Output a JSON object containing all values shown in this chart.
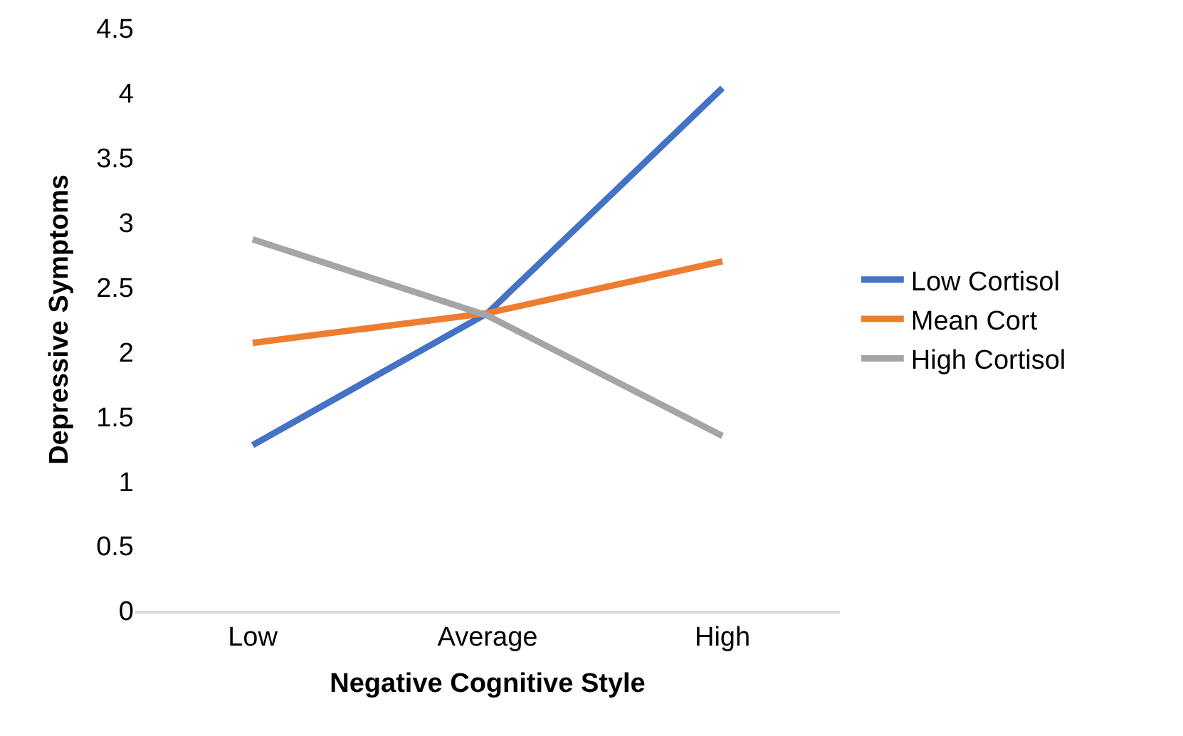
{
  "chart_data": {
    "type": "line",
    "xlabel": "Negative Cognitive Style",
    "ylabel": "Depressive Symptoms",
    "categories": [
      "Low",
      "Average",
      "High"
    ],
    "series": [
      {
        "name": "Low Cortisol",
        "color": "#4472c4",
        "values": [
          1.28,
          2.3,
          4.04
        ]
      },
      {
        "name": "Mean Cort",
        "color": "#ed7d31",
        "values": [
          2.07,
          2.3,
          2.7
        ]
      },
      {
        "name": "High Cortisol",
        "color": "#a5a5a5",
        "values": [
          2.87,
          2.28,
          1.35
        ]
      }
    ],
    "ylim": [
      0,
      4.5
    ],
    "yticks": [
      0,
      0.5,
      1,
      1.5,
      2,
      2.5,
      3,
      3.5,
      4,
      4.5
    ],
    "grid": false,
    "legend": "right",
    "marker": "none",
    "line_style": "solid"
  }
}
